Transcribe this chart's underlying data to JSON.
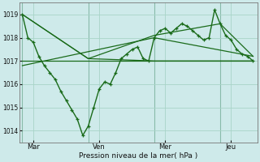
{
  "bg_color": "#ceeaea",
  "grid_color": "#a8d4c8",
  "line_color": "#1a6b1a",
  "xlabel": "Pression niveau de la mer( hPa )",
  "ylim": [
    1013.5,
    1019.5
  ],
  "yticks": [
    1014,
    1015,
    1016,
    1017,
    1018,
    1019
  ],
  "xlim": [
    -2,
    171
  ],
  "x_tick_positions": [
    8,
    56,
    104,
    152
  ],
  "x_tick_labels": [
    "Mar",
    "Ven",
    "Mer",
    "Jeu"
  ],
  "x_vline_positions": [
    0,
    48,
    96,
    144
  ],
  "main_line_x": [
    0,
    4,
    8,
    12,
    16,
    20,
    24,
    28,
    32,
    36,
    40,
    44,
    48,
    52,
    56,
    60,
    64,
    68,
    72,
    76,
    80,
    84,
    88,
    92,
    96,
    100,
    104,
    108,
    112,
    116,
    120,
    124,
    128,
    132,
    136,
    140,
    144,
    148,
    152,
    156,
    160,
    164,
    168
  ],
  "main_line_y": [
    1019.0,
    1018.0,
    1017.8,
    1017.2,
    1016.8,
    1016.5,
    1016.2,
    1015.7,
    1015.3,
    1014.9,
    1014.5,
    1013.8,
    1014.2,
    1015.0,
    1015.8,
    1016.1,
    1016.0,
    1016.5,
    1017.1,
    1017.3,
    1017.5,
    1017.6,
    1017.1,
    1017.0,
    1018.0,
    1018.3,
    1018.4,
    1018.2,
    1018.4,
    1018.6,
    1018.5,
    1018.3,
    1018.1,
    1017.9,
    1018.0,
    1019.2,
    1018.6,
    1018.1,
    1017.9,
    1017.5,
    1017.3,
    1017.2,
    1017.0
  ],
  "upper_env_x": [
    0,
    48,
    96,
    144,
    168
  ],
  "upper_env_y": [
    1019.0,
    1017.1,
    1018.1,
    1018.6,
    1017.2
  ],
  "lower_env_x": [
    0,
    48,
    96,
    144,
    168
  ],
  "lower_env_y": [
    1019.0,
    1017.1,
    1017.0,
    1017.0,
    1017.0
  ],
  "trend1_x": [
    0,
    168
  ],
  "trend1_y": [
    1017.0,
    1017.0
  ],
  "trend2_x": [
    0,
    96,
    168
  ],
  "trend2_y": [
    1016.8,
    1018.0,
    1017.2
  ]
}
